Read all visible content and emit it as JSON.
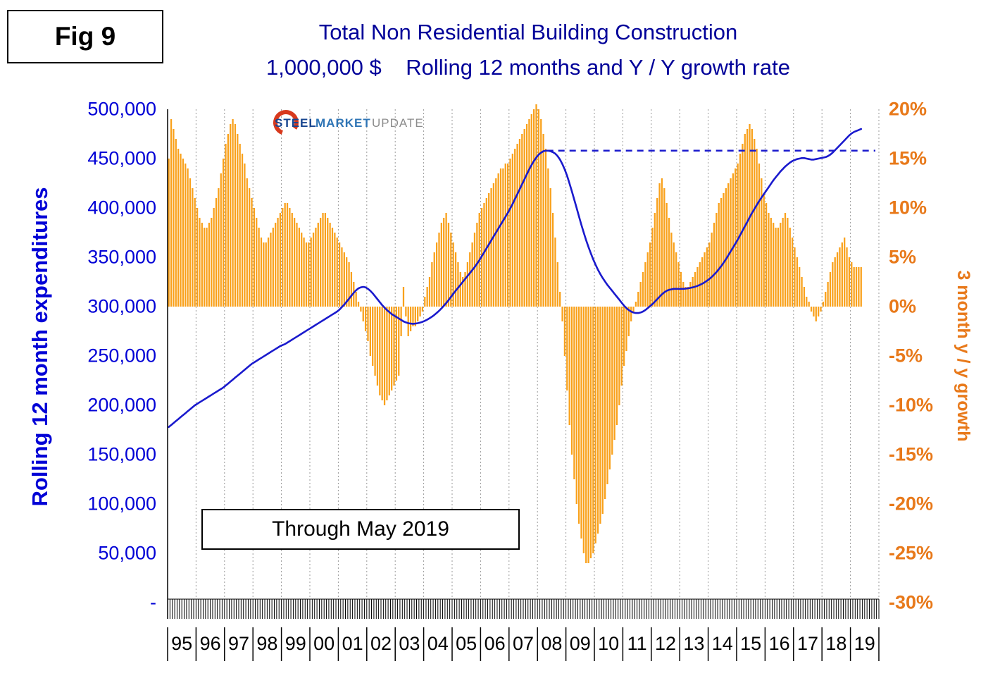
{
  "header": {
    "fig_label": "Fig 9",
    "title_line1": "Total Non Residential Building Construction",
    "title_line2": "1,000,000 $    Rolling 12 months and Y / Y growth rate"
  },
  "logo": {
    "steel": "STEEL",
    "market": "MARKET",
    "update": "UPDATE"
  },
  "annotation": {
    "through_label": "Through May 2019"
  },
  "axes": {
    "left": {
      "title": "Rolling 12 month expenditures",
      "ticks": [
        "500,000",
        "450,000",
        "400,000",
        "350,000",
        "300,000",
        "250,000",
        "200,000",
        "150,000",
        "100,000",
        "50,000",
        "-"
      ]
    },
    "right": {
      "title": "3 month y / y growth",
      "ticks": [
        "20%",
        "15%",
        "10%",
        "5%",
        "0%",
        "-5%",
        "-10%",
        "-15%",
        "-20%",
        "-25%",
        "-30%"
      ]
    },
    "x": {
      "years": [
        "95",
        "96",
        "97",
        "98",
        "99",
        "00",
        "01",
        "02",
        "03",
        "04",
        "05",
        "06",
        "07",
        "08",
        "09",
        "10",
        "11",
        "12",
        "13",
        "14",
        "15",
        "16",
        "17",
        "18",
        "19"
      ]
    }
  },
  "colors": {
    "bar": "#F9A11B",
    "line": "#1A1ACD",
    "title": "#000099",
    "left_axis": "#0202D6",
    "right_axis": "#E8791A",
    "grid": "#999999",
    "axis_black": "#000000"
  },
  "chart_data": {
    "type": "combo",
    "title": "Total Non Residential Building Construction",
    "units": "1,000,000 $",
    "frequency": "monthly",
    "x_start": "1995-01",
    "x_end": "2019-05",
    "left_axis": {
      "label": "Rolling 12 month expenditures",
      "range": [
        0,
        500000
      ],
      "tick_step": 50000
    },
    "right_axis": {
      "label": "3 month y / y growth",
      "range_percent": [
        -30,
        20
      ],
      "tick_step_percent": 5
    },
    "grid": "vertical-yearly-dotted",
    "legend": "none",
    "reference_line": {
      "style": "dashed",
      "axis": "left",
      "value": 458000,
      "start": "2008-05",
      "end": "2019-12"
    },
    "series": [
      {
        "name": "3 month y / y growth rate",
        "type": "bar",
        "axis": "right",
        "unit": "percent",
        "values": [
          15,
          19,
          18,
          17,
          16,
          15.5,
          15,
          14.5,
          14,
          13,
          12,
          11,
          10,
          9,
          8.5,
          8,
          8,
          8.5,
          9,
          10,
          11,
          12,
          13.5,
          15,
          16.5,
          17.5,
          18.5,
          19,
          18.5,
          17.5,
          16.5,
          15.5,
          14.5,
          13,
          12,
          11,
          10,
          9,
          8,
          7,
          6.5,
          6.5,
          7,
          7.5,
          8,
          8.5,
          9,
          9.5,
          10,
          10.5,
          10.5,
          10,
          9.5,
          9,
          8.5,
          8,
          7.5,
          7,
          6.5,
          6.5,
          7,
          7.5,
          8,
          8.5,
          9,
          9.5,
          9.5,
          9,
          8.5,
          8,
          7.5,
          7,
          6.5,
          6,
          5.5,
          5,
          4.5,
          3.5,
          2.5,
          1.5,
          0.5,
          -0.5,
          -1.5,
          -2.5,
          -3.5,
          -5,
          -6,
          -7,
          -8,
          -9,
          -9.5,
          -10,
          -9.5,
          -9,
          -8.5,
          -8,
          -7.5,
          -7,
          -3,
          2,
          -1,
          -3,
          -2.5,
          -2,
          -2,
          -1.5,
          -1,
          -0.5,
          1,
          2,
          3,
          4.5,
          5.5,
          6.5,
          7.5,
          8.5,
          9,
          9.5,
          8.5,
          7.5,
          6.5,
          5.5,
          4.5,
          3.5,
          3,
          3.5,
          4.5,
          5.5,
          6.5,
          7.5,
          8.5,
          9.5,
          10,
          10.5,
          11,
          11.5,
          12,
          12.5,
          13,
          13.5,
          14,
          14,
          14.5,
          14.5,
          15,
          15.5,
          16,
          16.5,
          17,
          17.5,
          18,
          18.5,
          19,
          19.5,
          20,
          20.5,
          20,
          19,
          17.5,
          16,
          14,
          12,
          9.5,
          7,
          4.5,
          1.5,
          -1.5,
          -5,
          -8.5,
          -12,
          -15,
          -17.5,
          -20,
          -22,
          -23.5,
          -25,
          -26,
          -26,
          -25.5,
          -25,
          -24,
          -23,
          -22,
          -21,
          -19.5,
          -18,
          -16.5,
          -15,
          -13.5,
          -12,
          -10,
          -8,
          -6,
          -4.5,
          -3,
          -1.5,
          -0.5,
          0.5,
          1.5,
          2.5,
          3.5,
          4.5,
          5.5,
          6.5,
          8,
          9.5,
          11,
          12.5,
          13,
          12,
          10.5,
          9,
          7.5,
          6.5,
          5.5,
          4.5,
          3.5,
          2.5,
          2,
          2,
          2.5,
          3,
          3.5,
          4,
          4.5,
          5,
          5.5,
          6,
          6.5,
          7.5,
          8.5,
          9.5,
          10.5,
          11,
          11.5,
          12,
          12.5,
          13,
          13.5,
          14,
          14.5,
          15.5,
          16.5,
          17.5,
          18,
          18.5,
          18,
          17,
          16,
          14.5,
          13,
          11.5,
          10.5,
          9.5,
          9,
          8.5,
          8,
          8,
          8.5,
          9,
          9.5,
          9,
          8,
          7,
          6,
          5,
          4,
          3,
          2,
          1,
          0.5,
          -0.5,
          -1,
          -1.5,
          -1,
          -0.5,
          0.5,
          1.5,
          2.5,
          3.5,
          4.5,
          5,
          5.5,
          6,
          6.5,
          7,
          6,
          5,
          4.5,
          4,
          4,
          4,
          4
        ]
      },
      {
        "name": "Rolling 12 month expenditures",
        "type": "line",
        "axis": "left",
        "unit": "million_usd",
        "values": [
          178000,
          180000,
          182000,
          184000,
          186000,
          188000,
          190000,
          192000,
          194000,
          196000,
          198000,
          200000,
          201500,
          203000,
          204500,
          206000,
          207500,
          209000,
          210500,
          212000,
          213500,
          215000,
          216500,
          218000,
          220000,
          222000,
          224000,
          226000,
          228000,
          230000,
          232000,
          234000,
          236000,
          238000,
          240000,
          242000,
          243500,
          245000,
          246500,
          248000,
          249500,
          251000,
          252500,
          254000,
          255500,
          257000,
          258500,
          260000,
          261000,
          262000,
          263500,
          265000,
          266500,
          268000,
          269500,
          271000,
          272500,
          274000,
          275500,
          277000,
          278500,
          280000,
          281500,
          283000,
          284500,
          286000,
          287500,
          289000,
          290500,
          292000,
          293500,
          295000,
          297000,
          299500,
          302000,
          305000,
          308000,
          311000,
          314000,
          316500,
          318500,
          319500,
          320000,
          319500,
          318000,
          316000,
          313500,
          310500,
          307500,
          304500,
          301500,
          299000,
          296500,
          294500,
          292500,
          291000,
          289500,
          288000,
          286500,
          285000,
          284000,
          283200,
          282800,
          282600,
          282800,
          283200,
          283800,
          284600,
          285600,
          286800,
          288200,
          289800,
          291600,
          293600,
          295800,
          298200,
          300800,
          303600,
          306600,
          309800,
          313000,
          316000,
          319000,
          322000,
          325000,
          328000,
          331000,
          334000,
          337000,
          340000,
          343500,
          347000,
          351000,
          355000,
          359000,
          363000,
          367000,
          371000,
          375000,
          379000,
          383000,
          387000,
          391000,
          395000,
          399500,
          404000,
          409000,
          414000,
          419000,
          424000,
          429000,
          434000,
          439000,
          443500,
          447500,
          451000,
          454000,
          456000,
          457500,
          458000,
          458000,
          457500,
          456500,
          455000,
          452500,
          449000,
          444500,
          439000,
          432500,
          425000,
          417000,
          408500,
          400000,
          391500,
          383000,
          375000,
          367500,
          360500,
          354000,
          348000,
          342500,
          337500,
          333000,
          329000,
          325500,
          322000,
          319000,
          316000,
          313000,
          310000,
          307000,
          304000,
          301000,
          298500,
          296500,
          295000,
          294000,
          293500,
          293500,
          294000,
          295000,
          296500,
          298500,
          300500,
          302500,
          305000,
          307500,
          310000,
          312500,
          314500,
          316000,
          317000,
          317500,
          318000,
          318000,
          318000,
          318000,
          318000,
          318200,
          318500,
          319000,
          319500,
          320200,
          321000,
          322000,
          323200,
          324600,
          326200,
          328000,
          330000,
          332500,
          335000,
          338000,
          341000,
          344500,
          348000,
          352000,
          356000,
          360000,
          364000,
          368000,
          372500,
          377000,
          381500,
          386000,
          390500,
          395000,
          399000,
          403000,
          407000,
          410500,
          414000,
          417500,
          421000,
          424500,
          428000,
          431000,
          434000,
          437000,
          439500,
          442000,
          444000,
          446000,
          447500,
          448500,
          449500,
          450000,
          450500,
          450500,
          450000,
          449500,
          449000,
          449000,
          449500,
          450000,
          450500,
          451000,
          451500,
          452500,
          454000,
          456000,
          458500,
          461000,
          463500,
          466000,
          468500,
          471000,
          473500,
          475500,
          477000,
          478000,
          479000,
          480000
        ]
      }
    ]
  }
}
